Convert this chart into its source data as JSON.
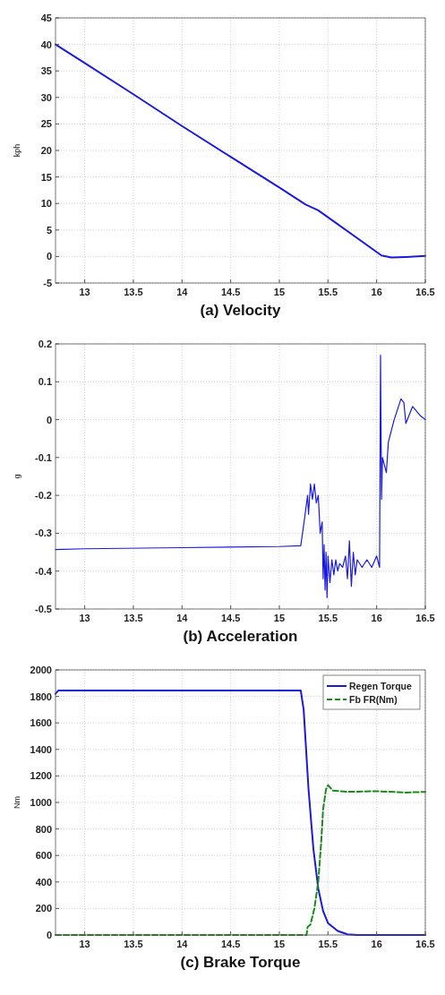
{
  "chart_data": [
    {
      "type": "line",
      "title": "(a) Velocity",
      "ylabel": "kph",
      "xlim": [
        12.7,
        16.5
      ],
      "xticks": [
        13,
        13.5,
        14,
        14.5,
        15,
        15.5,
        16,
        16.5
      ],
      "ylim": [
        -5,
        45
      ],
      "yticks": [
        -5,
        0,
        5,
        10,
        15,
        20,
        25,
        30,
        35,
        40,
        45
      ],
      "grid": true,
      "series": [
        {
          "color": "#1a1adc",
          "x": [
            12.7,
            13,
            13.5,
            14,
            14.5,
            15,
            15.27,
            15.4,
            15.5,
            16.05,
            16.15,
            16.3,
            16.5
          ],
          "values": [
            40,
            36.5,
            30.6,
            24.6,
            18.8,
            13,
            9.8,
            8.7,
            7.4,
            0.2,
            -0.2,
            -0.1,
            0.1
          ]
        }
      ]
    },
    {
      "type": "line",
      "title": "(b) Acceleration",
      "ylabel": "g",
      "xlim": [
        12.7,
        16.5
      ],
      "xticks": [
        13,
        13.5,
        14,
        14.5,
        15,
        15.5,
        16,
        16.5
      ],
      "ylim": [
        -0.5,
        0.2
      ],
      "yticks": [
        -0.5,
        -0.4,
        -0.3,
        -0.2,
        -0.1,
        0,
        0.1,
        0.2
      ],
      "grid": true,
      "series": [
        {
          "color": "#1a1adc",
          "x": [
            12.7,
            13,
            14,
            15,
            15.22,
            15.26,
            15.29,
            15.3,
            15.32,
            15.34,
            15.36,
            15.38,
            15.4,
            15.42,
            15.44,
            15.45,
            15.46,
            15.47,
            15.48,
            15.49,
            15.5,
            15.52,
            15.54,
            15.56,
            15.58,
            15.6,
            15.62,
            15.65,
            15.68,
            15.7,
            15.72,
            15.74,
            15.76,
            15.78,
            15.8,
            15.85,
            15.9,
            15.95,
            16,
            16.03,
            16.04,
            16.05,
            16.06,
            16.08,
            16.1,
            16.12,
            16.18,
            16.25,
            16.28,
            16.3,
            16.37,
            16.45,
            16.5
          ],
          "values": [
            -0.343,
            -0.341,
            -0.338,
            -0.335,
            -0.333,
            -0.26,
            -0.2,
            -0.25,
            -0.17,
            -0.21,
            -0.17,
            -0.22,
            -0.2,
            -0.3,
            -0.27,
            -0.42,
            -0.33,
            -0.45,
            -0.35,
            -0.47,
            -0.36,
            -0.43,
            -0.37,
            -0.41,
            -0.37,
            -0.4,
            -0.38,
            -0.39,
            -0.36,
            -0.42,
            -0.32,
            -0.44,
            -0.35,
            -0.41,
            -0.37,
            -0.39,
            -0.37,
            -0.39,
            -0.36,
            -0.39,
            0.17,
            -0.21,
            -0.1,
            -0.12,
            -0.14,
            -0.06,
            0,
            0.055,
            0.045,
            -0.01,
            0.035,
            0.01,
            0
          ]
        }
      ]
    },
    {
      "type": "line",
      "title": "(c) Brake Torque",
      "ylabel": "Nm",
      "xlim": [
        12.7,
        16.5
      ],
      "xticks": [
        13,
        13.5,
        14,
        14.5,
        15,
        15.5,
        16,
        16.5
      ],
      "ylim": [
        0,
        2000
      ],
      "yticks": [
        0,
        200,
        400,
        600,
        800,
        1000,
        1200,
        1400,
        1600,
        1800,
        2000
      ],
      "grid": true,
      "legend": "top right",
      "series": [
        {
          "name": "Regen Torque",
          "color": "#1a1adc",
          "line_style": "solid",
          "x": [
            12.7,
            12.73,
            15.22,
            15.25,
            15.3,
            15.35,
            15.4,
            15.45,
            15.5,
            15.6,
            15.7,
            15.8,
            16.5
          ],
          "values": [
            1820,
            1845,
            1845,
            1700,
            1100,
            650,
            350,
            180,
            90,
            30,
            5,
            0,
            0
          ]
        },
        {
          "name": "Fb FR(Nm)",
          "color": "#1a8a1a",
          "line_style": "dashed",
          "x": [
            12.7,
            15.28,
            15.29,
            15.32,
            15.36,
            15.4,
            15.43,
            15.45,
            15.48,
            15.5,
            15.55,
            15.7,
            16,
            16.3,
            16.5
          ],
          "values": [
            0,
            0,
            60,
            80,
            200,
            400,
            700,
            950,
            1100,
            1130,
            1090,
            1080,
            1085,
            1075,
            1080
          ]
        }
      ]
    }
  ]
}
